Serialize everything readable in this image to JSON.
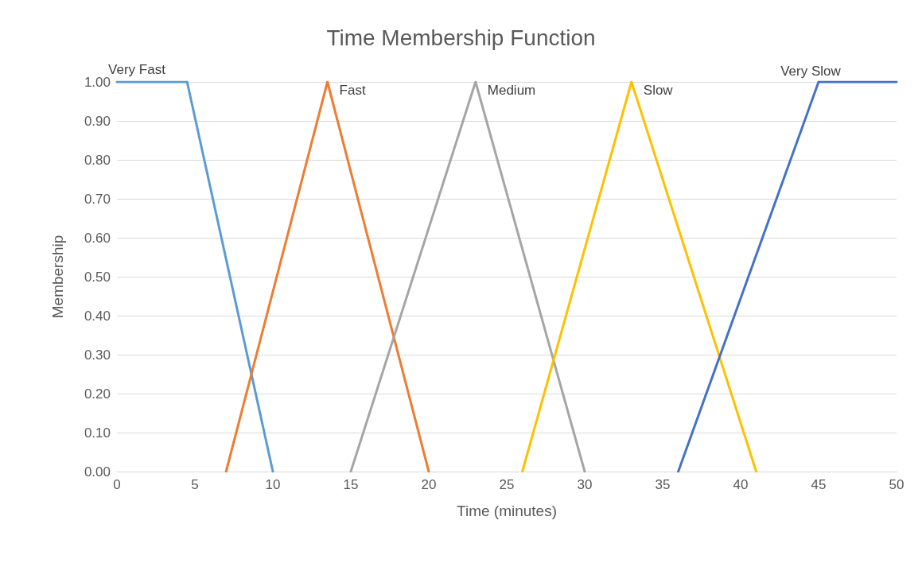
{
  "chart_data": {
    "type": "line",
    "title": "Time Membership Function",
    "xlabel": "Time (minutes)",
    "ylabel": "Membership",
    "xlim": [
      0,
      50
    ],
    "xticks": [
      0,
      5,
      10,
      15,
      20,
      25,
      30,
      35,
      40,
      45,
      50
    ],
    "ylim": [
      0,
      1
    ],
    "yticks": [
      {
        "value": 0,
        "label": "0.00"
      },
      {
        "value": 0.1,
        "label": "0.10"
      },
      {
        "value": 0.2,
        "label": "0.20"
      },
      {
        "value": 0.3,
        "label": "0.30"
      },
      {
        "value": 0.4,
        "label": "0.40"
      },
      {
        "value": 0.5,
        "label": "0.50"
      },
      {
        "value": 0.6,
        "label": "0.60"
      },
      {
        "value": 0.7,
        "label": "0.70"
      },
      {
        "value": 0.8,
        "label": "0.80"
      },
      {
        "value": 0.9,
        "label": "0.90"
      },
      {
        "value": 1,
        "label": "1.00"
      }
    ],
    "grid": "y",
    "legend": false,
    "marker": "none",
    "line_style": "solid",
    "series": [
      {
        "name": "Very Fast",
        "color": "#5b9bd5",
        "x": [
          0,
          4.5,
          10
        ],
        "values": [
          1,
          1,
          0
        ]
      },
      {
        "name": "Fast",
        "color": "#ed7d31",
        "x": [
          7,
          13.5,
          20
        ],
        "values": [
          0,
          1,
          0
        ]
      },
      {
        "name": "Medium",
        "color": "#a5a5a5",
        "x": [
          15,
          23,
          30
        ],
        "values": [
          0,
          1,
          0
        ]
      },
      {
        "name": "Slow",
        "color": "#ffc000",
        "x": [
          26,
          33,
          41
        ],
        "values": [
          0,
          1,
          0
        ]
      },
      {
        "name": "Very Slow",
        "color": "#4472c4",
        "x": [
          36,
          45,
          50
        ],
        "values": [
          0,
          1,
          1
        ]
      }
    ]
  }
}
